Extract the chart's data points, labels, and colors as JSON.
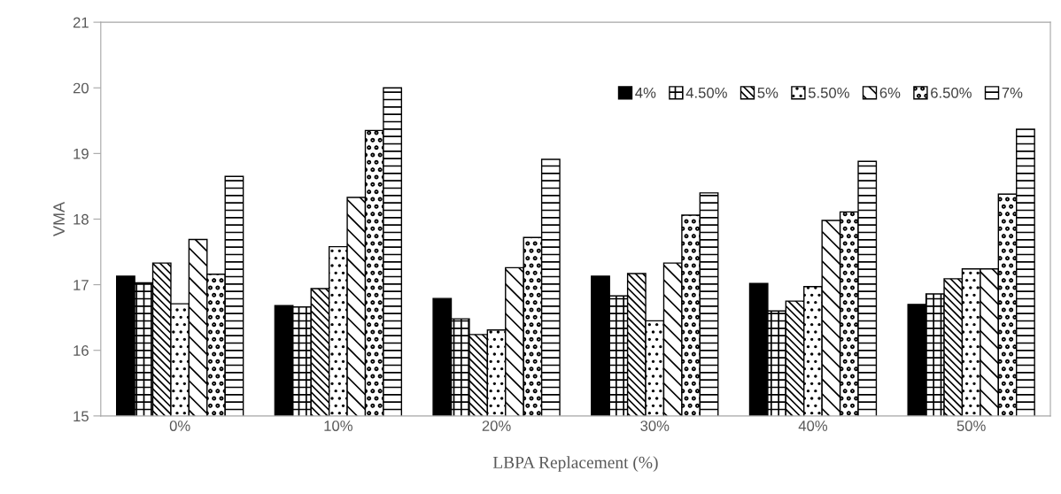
{
  "chart_data": {
    "type": "bar",
    "xlabel": "LBPA Replacement (%)",
    "ylabel": "VMA",
    "categories": [
      "0%",
      "10%",
      "20%",
      "30%",
      "40%",
      "50%"
    ],
    "series": [
      {
        "name": "4%",
        "color": "#000000",
        "values": [
          17.13,
          16.68,
          16.79,
          17.13,
          17.02,
          16.7
        ]
      },
      {
        "name": "4.50%",
        "color": "#000000",
        "values": [
          17.03,
          16.66,
          16.48,
          16.83,
          16.6,
          16.86
        ]
      },
      {
        "name": "5%",
        "color": "#000000",
        "values": [
          17.33,
          16.94,
          16.24,
          17.17,
          16.75,
          17.09
        ]
      },
      {
        "name": "5.50%",
        "color": "#000000",
        "values": [
          16.71,
          17.58,
          16.31,
          16.45,
          16.97,
          17.24
        ]
      },
      {
        "name": "6%",
        "color": "#000000",
        "values": [
          17.69,
          18.33,
          17.26,
          17.33,
          17.98,
          17.24
        ]
      },
      {
        "name": "6.50%",
        "color": "#000000",
        "values": [
          17.16,
          19.35,
          17.72,
          18.06,
          18.11,
          18.38
        ]
      },
      {
        "name": "7%",
        "color": "#000000",
        "values": [
          18.65,
          20.0,
          18.91,
          18.4,
          18.88,
          19.37
        ]
      }
    ],
    "ylim": [
      15,
      21
    ],
    "yticks": [
      15,
      16,
      17,
      18,
      19,
      20,
      21
    ],
    "grid": false,
    "legend": "top right"
  }
}
